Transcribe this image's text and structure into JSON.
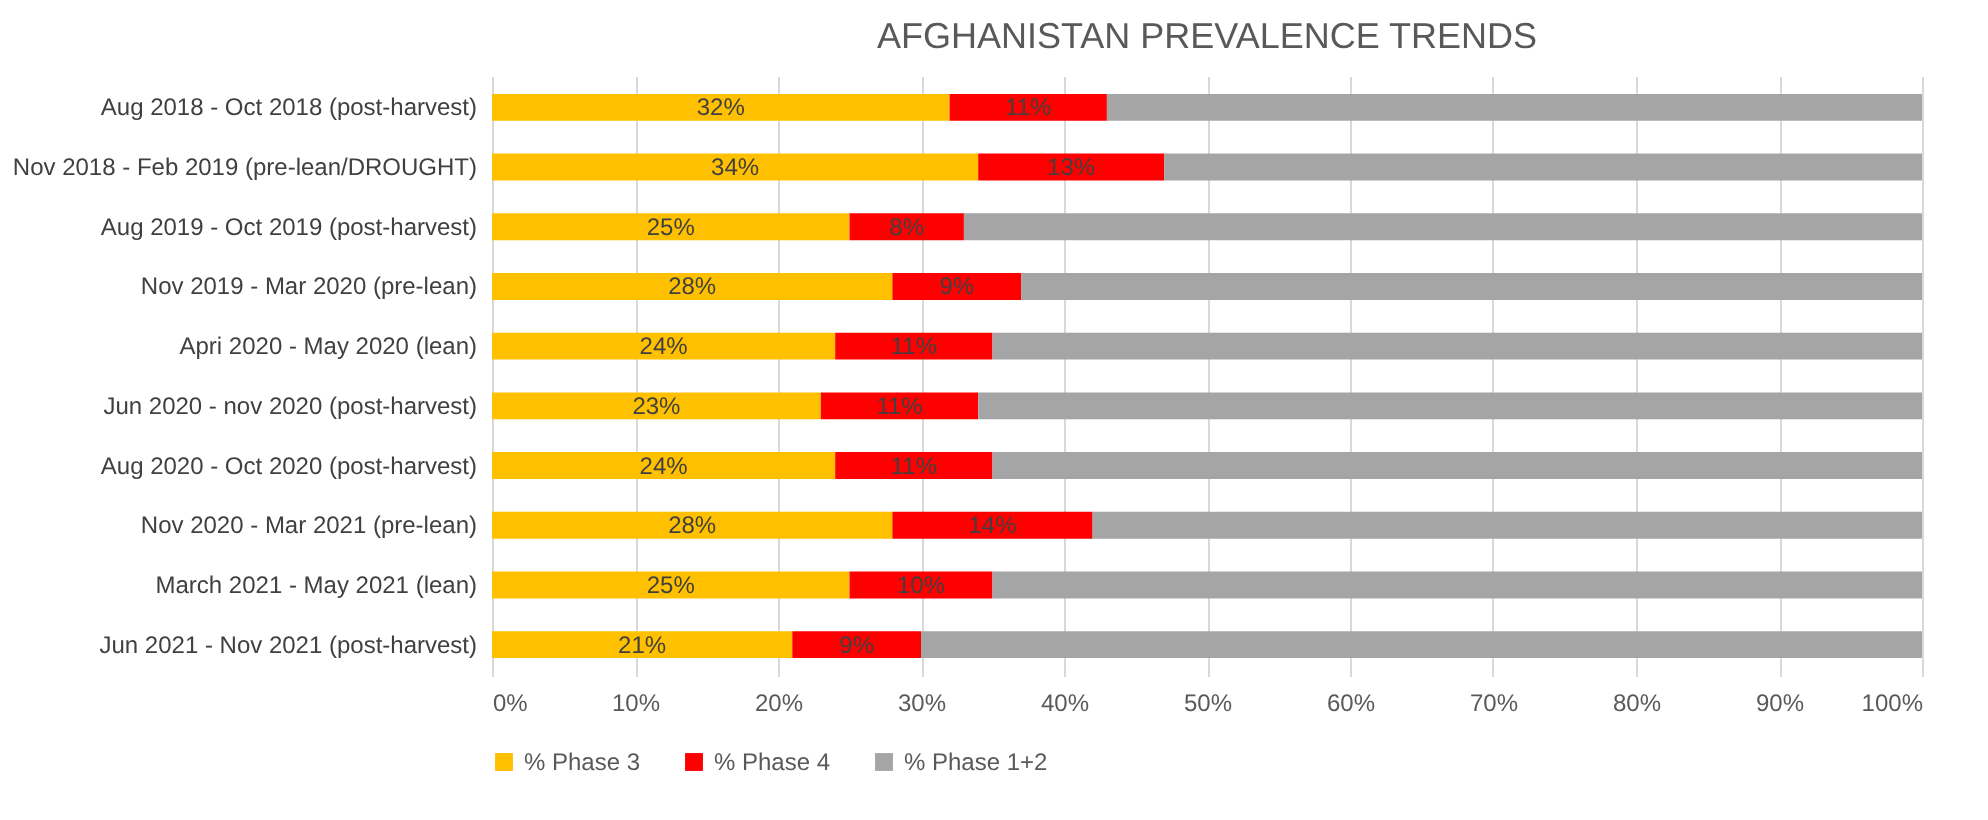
{
  "chart_data": {
    "type": "bar",
    "title": "AFGHANISTAN PREVALENCE TRENDS",
    "orientation": "horizontal",
    "stacked": true,
    "categories": [
      "Aug 2018 - Oct 2018 (post-harvest)",
      "Nov 2018 - Feb 2019 (pre-lean/DROUGHT)",
      "Aug 2019 - Oct 2019 (post-harvest)",
      "Nov 2019 - Mar 2020 (pre-lean)",
      "Apri 2020 - May 2020 (lean)",
      "Jun 2020 - nov 2020 (post-harvest)",
      "Aug 2020 - Oct 2020 (post-harvest)",
      "Nov 2020 - Mar 2021  (pre-lean)",
      "March 2021 - May 2021 (lean)",
      "Jun 2021 - Nov 2021 (post-harvest)"
    ],
    "series": [
      {
        "name": "% Phase 3",
        "color": "#ffc000",
        "values": [
          32,
          34,
          25,
          28,
          24,
          23,
          24,
          28,
          25,
          21
        ],
        "value_labels": [
          "32%",
          "34%",
          "25%",
          "28%",
          "24%",
          "23%",
          "24%",
          "28%",
          "25%",
          "21%"
        ]
      },
      {
        "name": "% Phase 4",
        "color": "#ff0000",
        "values": [
          11,
          13,
          8,
          9,
          11,
          11,
          11,
          14,
          10,
          9
        ],
        "value_labels": [
          "11%",
          "13%",
          "8%",
          "9%",
          "11%",
          "11%",
          "11%",
          "14%",
          "10%",
          "9%"
        ]
      },
      {
        "name": "% Phase 1+2",
        "color": "#a5a5a5",
        "values": [
          57,
          53,
          67,
          63,
          65,
          66,
          65,
          58,
          65,
          70
        ]
      }
    ],
    "xlim": [
      0,
      100
    ],
    "xticks": [
      {
        "value": 0,
        "label": "0%"
      },
      {
        "value": 10,
        "label": "10%"
      },
      {
        "value": 20,
        "label": "20%"
      },
      {
        "value": 30,
        "label": "30%"
      },
      {
        "value": 40,
        "label": "40%"
      },
      {
        "value": 50,
        "label": "50%"
      },
      {
        "value": 60,
        "label": "60%"
      },
      {
        "value": 70,
        "label": "70%"
      },
      {
        "value": 80,
        "label": "80%"
      },
      {
        "value": 90,
        "label": "90%"
      },
      {
        "value": 100,
        "label": "100%"
      }
    ],
    "grid": "x",
    "legend": "bottom"
  }
}
